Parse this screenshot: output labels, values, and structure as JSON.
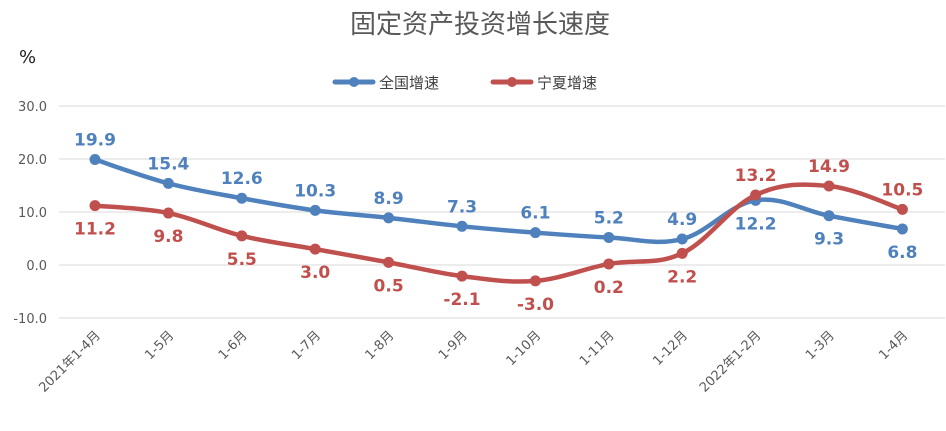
{
  "chart_data": {
    "type": "line",
    "title": "固定资产投资增长速度",
    "ylabel": "%",
    "ylim": [
      -10,
      30
    ],
    "yticks": [
      "30.0",
      "20.0",
      "10.0",
      "0.0",
      "-10.0"
    ],
    "ytick_values": [
      30,
      20,
      10,
      0,
      -10
    ],
    "grid": true,
    "legend_position": "top-center",
    "categories": [
      "2021年1-4月",
      "1-5月",
      "1-6月",
      "1-7月",
      "1-8月",
      "1-9月",
      "1-10月",
      "1-11月",
      "1-12月",
      "2022年1-2月",
      "1-3月",
      "1-4月"
    ],
    "series": [
      {
        "name": "全国增速",
        "color": "#4F81BD",
        "values": [
          19.9,
          15.4,
          12.6,
          10.3,
          8.9,
          7.3,
          6.1,
          5.2,
          4.9,
          12.2,
          9.3,
          6.8
        ],
        "labels": [
          "19.9",
          "15.4",
          "12.6",
          "10.3",
          "8.9",
          "7.3",
          "6.1",
          "5.2",
          "4.9",
          "12.2",
          "9.3",
          "6.8"
        ]
      },
      {
        "name": "宁夏增速",
        "color": "#C0504D",
        "values": [
          11.2,
          9.8,
          5.5,
          3.0,
          0.5,
          -2.1,
          -3.0,
          0.2,
          2.2,
          13.2,
          14.9,
          10.5
        ],
        "labels": [
          "11.2",
          "9.8",
          "5.5",
          "3.0",
          "0.5",
          "-2.1",
          "-3.0",
          "0.2",
          "2.2",
          "13.2",
          "14.9",
          "10.5"
        ]
      }
    ]
  }
}
